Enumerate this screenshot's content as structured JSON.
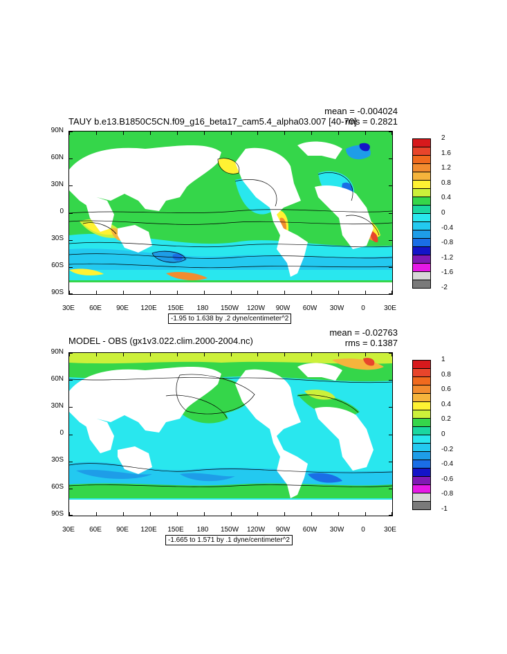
{
  "panels": [
    {
      "title": "TAUY b.e13.B1850C5CN.f09_g16_beta17_cam5.4_alpha03.007 [40-70]",
      "mean": "mean = -0.004024",
      "rms": "rms = 0.2821",
      "range": "-1.95 to 1.638 by .2 dyne/centimeter^2",
      "lat_labels": [
        "90N",
        "60N",
        "30N",
        "0",
        "30S",
        "60S",
        "90S"
      ],
      "lon_labels": [
        "30E",
        "60E",
        "90E",
        "120E",
        "150E",
        "180",
        "150W",
        "120W",
        "90W",
        "60W",
        "30W",
        "0",
        "30E"
      ],
      "colorbar": {
        "labels": [
          "2",
          "1.6",
          "1.2",
          "0.8",
          "0.4",
          "0",
          "-0.4",
          "-0.8",
          "-1.2",
          "-1.6",
          "-2"
        ],
        "colors": [
          "#d7191c",
          "#e8452b",
          "#f06a1e",
          "#f28c2f",
          "#f5b43c",
          "#fff233",
          "#ccf03a",
          "#35d64a",
          "#1ad7a0",
          "#29e7ee",
          "#23c9f0",
          "#1e9de8",
          "#1a6ee6",
          "#1414c8",
          "#8019b4",
          "#e619e6",
          "#d7d7d7",
          "#7a7a7a"
        ]
      }
    },
    {
      "title": "MODEL - OBS (gx1v3.022.clim.2000-2004.nc)",
      "mean": "mean = -0.02763",
      "rms": "rms = 0.1387",
      "range": "-1.665 to 1.571 by .1 dyne/centimeter^2",
      "lat_labels": [
        "90N",
        "60N",
        "30N",
        "0",
        "30S",
        "60S",
        "90S"
      ],
      "lon_labels": [
        "30E",
        "60E",
        "90E",
        "120E",
        "150E",
        "180",
        "150W",
        "120W",
        "90W",
        "60W",
        "30W",
        "0",
        "30E"
      ],
      "colorbar": {
        "labels": [
          "1",
          "0.8",
          "0.6",
          "0.4",
          "0.2",
          "0",
          "-0.2",
          "-0.4",
          "-0.6",
          "-0.8",
          "-1"
        ],
        "colors": [
          "#d7191c",
          "#e8452b",
          "#f06a1e",
          "#f28c2f",
          "#f5b43c",
          "#fff233",
          "#ccf03a",
          "#35d64a",
          "#1ad7a0",
          "#29e7ee",
          "#23c9f0",
          "#1e9de8",
          "#1a6ee6",
          "#1414c8",
          "#8019b4",
          "#e619e6",
          "#d7d7d7",
          "#7a7a7a"
        ]
      }
    }
  ]
}
